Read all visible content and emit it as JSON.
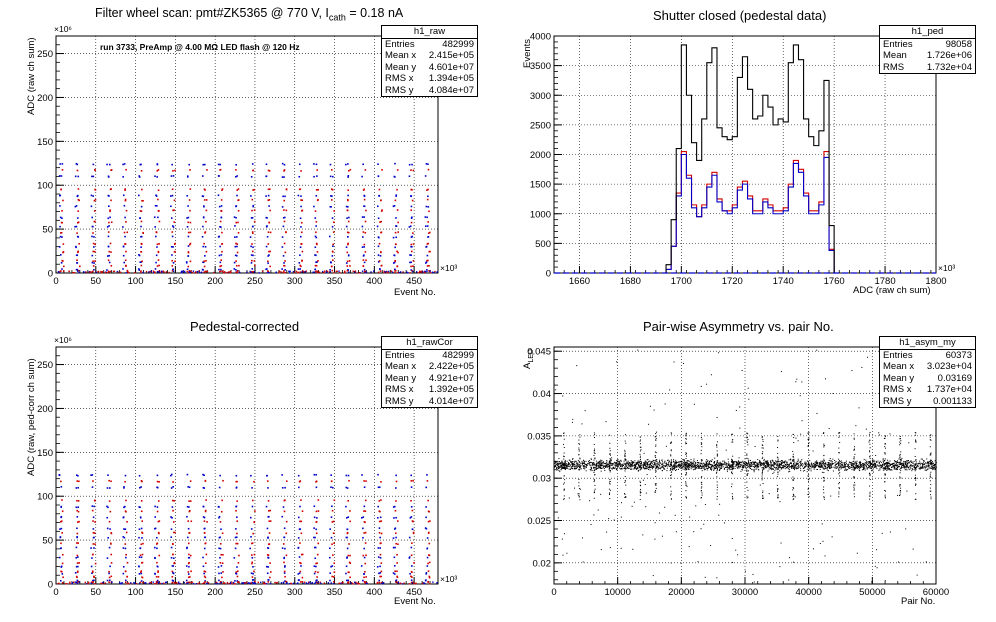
{
  "panels": [
    {
      "title": "Filter wheel scan: pmt#ZK5365 @ 770 V, I",
      "title_sub": "cath",
      "title_tail": " = 0.18 nA",
      "note": "run 3733, PreAmp @ 4.00 MΩ LED flash @ 120 Hz",
      "ylabel": "ADC (raw ch sum)",
      "xlabel": "Event No.",
      "y_power": "×10⁶",
      "x_power": "×10³",
      "stats": {
        "name": "h1_raw",
        "rows": [
          [
            "Entries",
            "482999"
          ],
          [
            "Mean x",
            "2.415e+05"
          ],
          [
            "Mean y",
            "4.601e+07"
          ],
          [
            "RMS x",
            "1.394e+05"
          ],
          [
            "RMS y",
            "4.084e+07"
          ]
        ]
      }
    },
    {
      "title": "Shutter closed (pedestal data)",
      "ylabel": "Events",
      "xlabel": "ADC (raw ch sum)",
      "x_power": "×10³",
      "stats": {
        "name": "h1_ped",
        "rows": [
          [
            "Entries",
            "98058"
          ],
          [
            "Mean",
            "1.726e+06"
          ],
          [
            "RMS",
            "1.732e+04"
          ]
        ]
      }
    },
    {
      "title": "Pedestal-corrected",
      "ylabel": "ADC (raw, ped-corr ch sum)",
      "xlabel": "Event No.",
      "y_power": "×10⁶",
      "x_power": "×10³",
      "stats": {
        "name": "h1_rawCor",
        "rows": [
          [
            "Entries",
            "482999"
          ],
          [
            "Mean x",
            "2.422e+05"
          ],
          [
            "Mean y",
            "4.921e+07"
          ],
          [
            "RMS x",
            "1.392e+05"
          ],
          [
            "RMS y",
            "4.014e+07"
          ]
        ]
      }
    },
    {
      "title": "Pair-wise Asymmetry vs. pair No.",
      "ylabel": "A",
      "ylabel_sub": "LED",
      "xlabel": "Pair No.",
      "stats": {
        "name": "h1_asym_my",
        "rows": [
          [
            "Entries",
            "60373"
          ],
          [
            "Mean x",
            "3.023e+04"
          ],
          [
            "Mean y",
            "0.03169"
          ],
          [
            "RMS x",
            "1.737e+04"
          ],
          [
            "RMS y",
            "0.001133"
          ]
        ]
      }
    }
  ],
  "colors": {
    "black": "#000000",
    "red": "#d00000",
    "blue": "#0000c8",
    "grid": "#000000"
  },
  "chart_data": [
    {
      "type": "scatter",
      "title": "Filter wheel scan: pmt#ZK5365 @ 770 V, I cath = 0.18 nA",
      "xlabel": "Event No. (×10³)",
      "ylabel": "ADC (raw ch sum) (×10⁶)",
      "xlim": [
        0,
        480
      ],
      "ylim": [
        0,
        270
      ],
      "xticks": [
        0,
        50,
        100,
        150,
        200,
        250,
        300,
        350,
        400,
        450
      ],
      "yticks": [
        0,
        50,
        100,
        150,
        200,
        250
      ],
      "grid": true,
      "cycle_period": 20,
      "series": [
        {
          "color": "blue",
          "levels": [
            124,
            110,
            88,
            76,
            63,
            53,
            41,
            30,
            20,
            12,
            4
          ]
        },
        {
          "color": "red",
          "levels": [
            117,
            95,
            83,
            71,
            58,
            46,
            33,
            24,
            14,
            8,
            2
          ]
        }
      ]
    },
    {
      "type": "line",
      "title": "Shutter closed (pedestal data)",
      "xlabel": "ADC (raw ch sum) (×10³)",
      "ylabel": "Events",
      "xlim": [
        1650,
        1800
      ],
      "ylim": [
        0,
        4000
      ],
      "xticks": [
        1660,
        1680,
        1700,
        1720,
        1740,
        1760,
        1780,
        1800
      ],
      "yticks": [
        0,
        500,
        1000,
        1500,
        2000,
        2500,
        3000,
        3500,
        4000
      ],
      "grid": true,
      "bin_width": 2,
      "x_start": 1694,
      "series": [
        {
          "color": "black",
          "values": [
            140,
            900,
            2100,
            3850,
            3000,
            2200,
            1900,
            2600,
            3550,
            3800,
            2450,
            2300,
            2250,
            2300,
            3300,
            3650,
            3100,
            2600,
            2650,
            3000,
            2800,
            2500,
            2600,
            2550,
            3550,
            3850,
            3600,
            2600,
            2300,
            2150,
            2400,
            3250,
            800,
            0
          ]
        },
        {
          "color": "red",
          "values": [
            60,
            450,
            1350,
            2050,
            1650,
            1150,
            950,
            1150,
            1500,
            1700,
            1250,
            1050,
            1050,
            1150,
            1450,
            1550,
            1300,
            1050,
            1050,
            1250,
            1150,
            1050,
            1050,
            1100,
            1500,
            1900,
            1750,
            1350,
            1050,
            1050,
            1200,
            2050,
            400,
            0
          ]
        },
        {
          "color": "blue",
          "values": [
            60,
            450,
            1300,
            2000,
            1600,
            1100,
            950,
            1100,
            1450,
            1650,
            1200,
            1050,
            1000,
            1100,
            1400,
            1500,
            1250,
            1000,
            1000,
            1200,
            1100,
            1000,
            1000,
            1050,
            1450,
            1850,
            1700,
            1300,
            1000,
            1000,
            1150,
            1950,
            380,
            0
          ]
        }
      ]
    },
    {
      "type": "scatter",
      "title": "Pedestal-corrected",
      "xlabel": "Event No. (×10³)",
      "ylabel": "ADC (raw, ped-corr ch sum) (×10⁶)",
      "xlim": [
        0,
        480
      ],
      "ylim": [
        0,
        270
      ],
      "xticks": [
        0,
        50,
        100,
        150,
        200,
        250,
        300,
        350,
        400,
        450
      ],
      "yticks": [
        0,
        50,
        100,
        150,
        200,
        250
      ],
      "grid": true,
      "cycle_period": 20,
      "series": [
        {
          "color": "blue",
          "levels": [
            124,
            110,
            88,
            76,
            63,
            53,
            41,
            30,
            20,
            12,
            4
          ]
        },
        {
          "color": "red",
          "levels": [
            117,
            95,
            83,
            71,
            58,
            46,
            33,
            24,
            14,
            8,
            2
          ]
        }
      ]
    },
    {
      "type": "scatter",
      "title": "Pair-wise Asymmetry vs. pair No.",
      "xlabel": "Pair No.",
      "ylabel": "A LED",
      "xlim": [
        0,
        60000
      ],
      "ylim": [
        0.0175,
        0.0455
      ],
      "xticks": [
        0,
        10000,
        20000,
        30000,
        40000,
        50000,
        60000
      ],
      "yticks": [
        0.02,
        0.025,
        0.03,
        0.035,
        0.04,
        0.045
      ],
      "grid": true,
      "band_center": 0.0316,
      "band_half_width": 0.0009,
      "spike_period": 2400,
      "spike_high": 0.0355,
      "spike_low": 0.0275
    }
  ]
}
